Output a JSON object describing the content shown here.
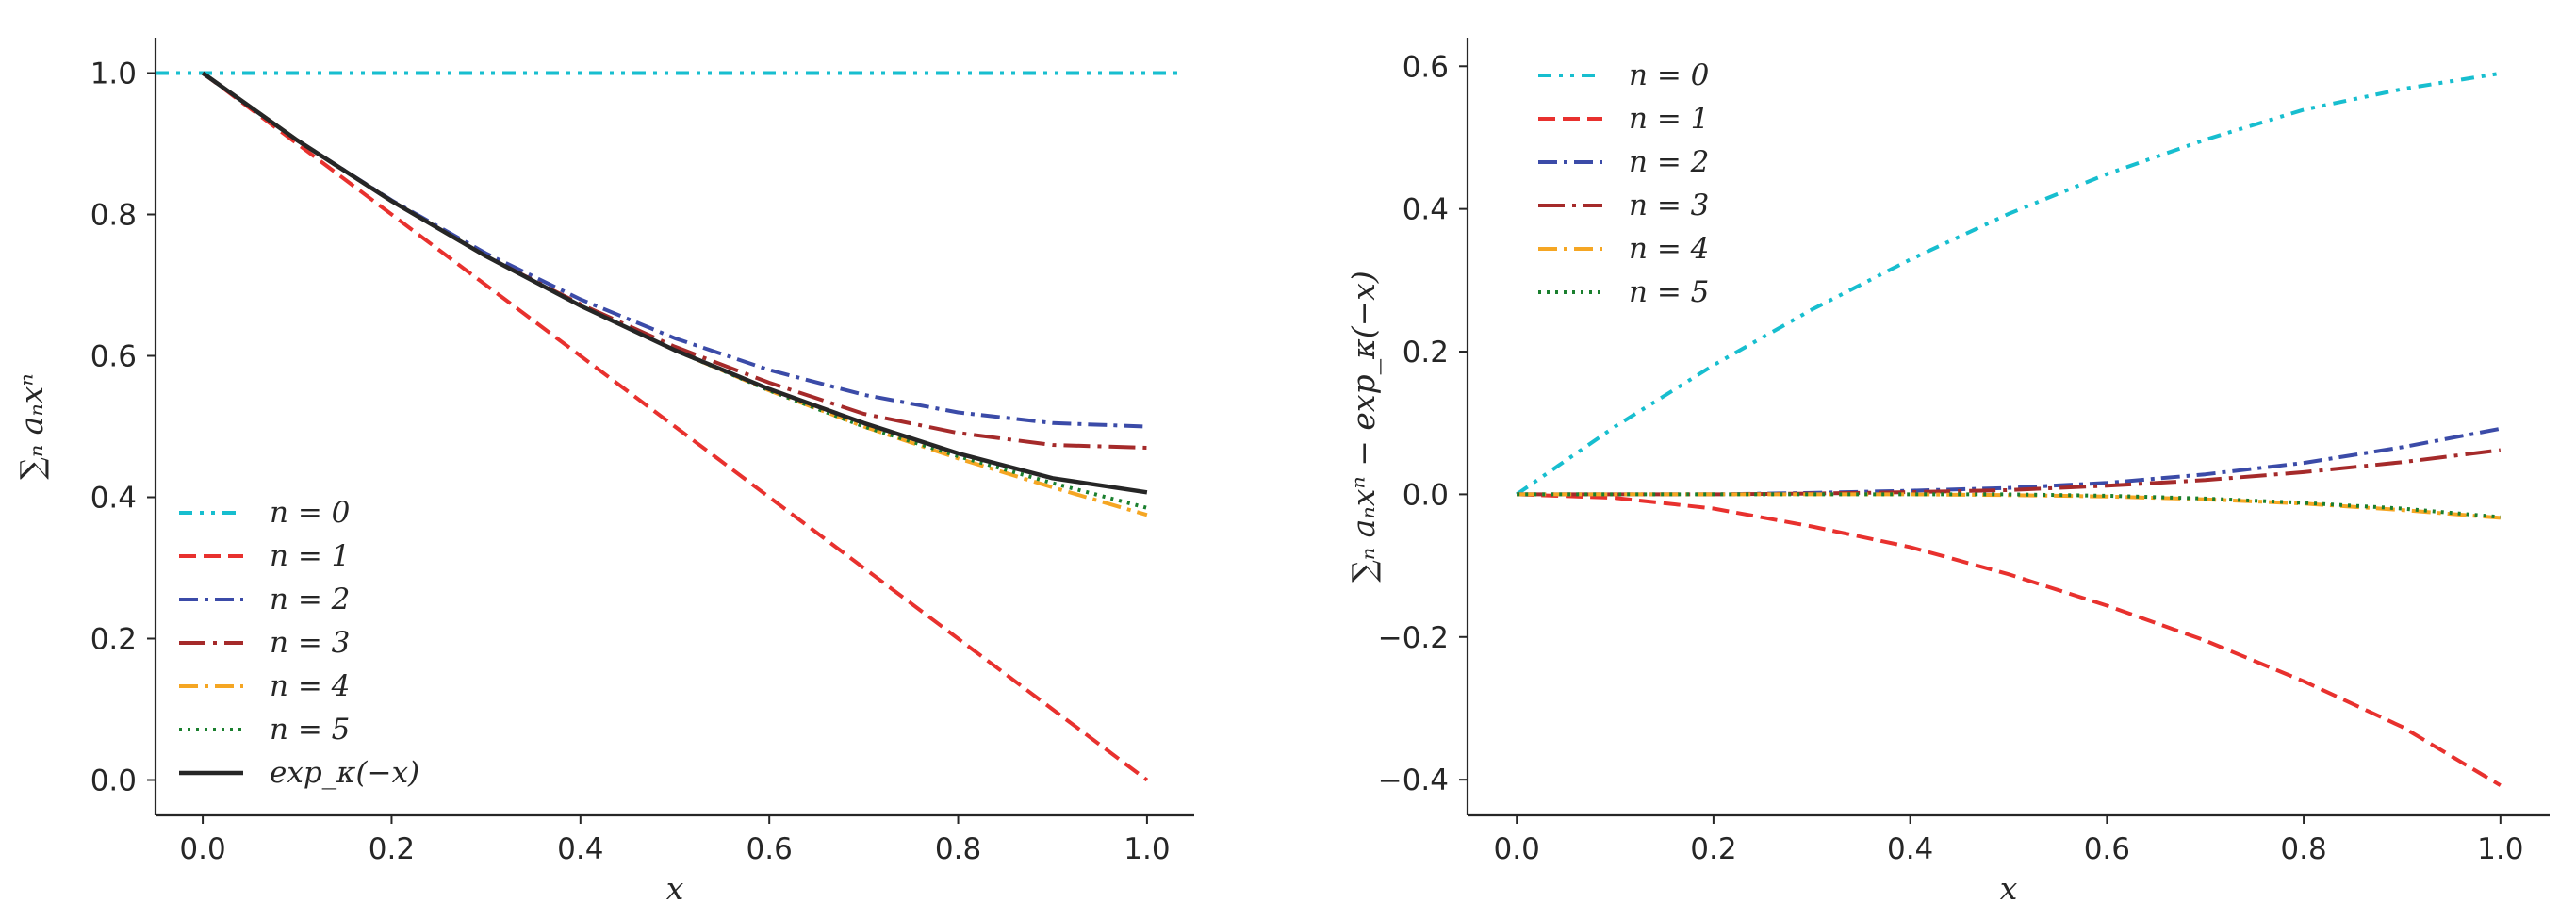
{
  "colors": {
    "n0": "#17becf",
    "n1": "#e8312e",
    "n2": "#3b4ba8",
    "n3": "#a52a2a",
    "n4": "#f5a623",
    "n5": "#1a7f2e",
    "exp": "#262626",
    "axis": "#262626"
  },
  "chart_data": [
    {
      "type": "line",
      "title": "",
      "xlabel": "x",
      "ylabel": "∑ₙ aₙxⁿ",
      "xlim": [
        -0.05,
        1.05
      ],
      "ylim": [
        -0.05,
        1.05
      ],
      "x_ticks": [
        0.0,
        0.2,
        0.4,
        0.6,
        0.8,
        1.0
      ],
      "x_tick_labels": [
        "0.0",
        "0.2",
        "0.4",
        "0.6",
        "0.8",
        "1.0"
      ],
      "y_ticks": [
        0.0,
        0.2,
        0.4,
        0.6,
        0.8,
        1.0
      ],
      "y_tick_labels": [
        "0.0",
        "0.2",
        "0.4",
        "0.6",
        "0.8",
        "1.0"
      ],
      "legend_position": "bottom-left",
      "x": [
        0.0,
        0.1,
        0.2,
        0.3,
        0.4,
        0.5,
        0.6,
        0.7,
        0.8,
        0.9,
        1.0
      ],
      "series": [
        {
          "name": "n = 0",
          "color_key": "n0",
          "dash": "dashdotdot",
          "values": [
            1.0,
            1.0,
            1.0,
            1.0,
            1.0,
            1.0,
            1.0,
            1.0,
            1.0,
            1.0,
            1.0
          ],
          "x_range": [
            -0.05,
            1.04
          ]
        },
        {
          "name": "n = 1",
          "color_key": "n1",
          "dash": "dashed",
          "values": [
            1.0,
            0.9,
            0.8,
            0.7,
            0.6,
            0.5,
            0.4,
            0.3,
            0.2,
            0.1,
            0.0
          ]
        },
        {
          "name": "n = 2",
          "color_key": "n2",
          "dash": "dashdot",
          "values": [
            1.0,
            0.905,
            0.82,
            0.745,
            0.68,
            0.625,
            0.58,
            0.545,
            0.52,
            0.505,
            0.5
          ]
        },
        {
          "name": "n = 3",
          "color_key": "n3",
          "dash": "longdash",
          "values": [
            1.0,
            0.905,
            0.819,
            0.741,
            0.673,
            0.613,
            0.562,
            0.518,
            0.491,
            0.474,
            0.47
          ]
        },
        {
          "name": "n = 4",
          "color_key": "n4",
          "dash": "dashdot",
          "values": [
            1.0,
            0.905,
            0.819,
            0.741,
            0.671,
            0.608,
            0.551,
            0.5,
            0.455,
            0.414,
            0.375
          ]
        },
        {
          "name": "n = 5",
          "color_key": "n5",
          "dash": "dotted",
          "values": [
            1.0,
            0.905,
            0.819,
            0.741,
            0.671,
            0.608,
            0.551,
            0.5,
            0.458,
            0.42,
            0.385
          ]
        },
        {
          "name": "exp_κ(−x)",
          "color_key": "exp",
          "dash": "solid",
          "values": [
            1.0,
            0.905,
            0.819,
            0.741,
            0.671,
            0.608,
            0.553,
            0.505,
            0.462,
            0.427,
            0.407
          ]
        }
      ]
    },
    {
      "type": "line",
      "title": "",
      "xlabel": "x",
      "ylabel": "∑ₙ aₙxⁿ − exp_κ(−x)",
      "xlim": [
        -0.05,
        1.05
      ],
      "ylim": [
        -0.45,
        0.64
      ],
      "x_ticks": [
        0.0,
        0.2,
        0.4,
        0.6,
        0.8,
        1.0
      ],
      "x_tick_labels": [
        "0.0",
        "0.2",
        "0.4",
        "0.6",
        "0.8",
        "1.0"
      ],
      "y_ticks": [
        -0.4,
        -0.2,
        0.0,
        0.2,
        0.4,
        0.6
      ],
      "y_tick_labels": [
        "−0.4",
        "−0.2",
        "0.0",
        "0.2",
        "0.4",
        "0.6"
      ],
      "legend_position": "top-left",
      "x": [
        0.0,
        0.1,
        0.2,
        0.3,
        0.4,
        0.5,
        0.6,
        0.7,
        0.8,
        0.9,
        1.0
      ],
      "series": [
        {
          "name": "n = 0",
          "color_key": "n0",
          "dash": "dashdotdot",
          "values": [
            0.0,
            0.095,
            0.181,
            0.259,
            0.329,
            0.393,
            0.449,
            0.497,
            0.539,
            0.568,
            0.59
          ]
        },
        {
          "name": "n = 1",
          "color_key": "n1",
          "dash": "dashed",
          "values": [
            0.0,
            -0.005,
            -0.02,
            -0.045,
            -0.074,
            -0.112,
            -0.156,
            -0.205,
            -0.262,
            -0.326,
            -0.408
          ]
        },
        {
          "name": "n = 2",
          "color_key": "n2",
          "dash": "dashdot",
          "values": [
            0.0,
            0.0,
            0.0,
            0.002,
            0.005,
            0.009,
            0.016,
            0.028,
            0.044,
            0.066,
            0.092
          ]
        },
        {
          "name": "n = 3",
          "color_key": "n3",
          "dash": "longdash",
          "values": [
            0.0,
            0.0,
            0.0,
            0.001,
            0.003,
            0.006,
            0.012,
            0.02,
            0.031,
            0.045,
            0.062
          ]
        },
        {
          "name": "n = 4",
          "color_key": "n4",
          "dash": "dashdot",
          "values": [
            0.0,
            0.0,
            0.0,
            0.0,
            0.0,
            -0.001,
            -0.003,
            -0.007,
            -0.013,
            -0.022,
            -0.033
          ]
        },
        {
          "name": "n = 5",
          "color_key": "n5",
          "dash": "dotted",
          "values": [
            0.0,
            0.0,
            0.0,
            0.0,
            0.0,
            0.0,
            -0.002,
            -0.006,
            -0.012,
            -0.02,
            -0.032
          ]
        }
      ]
    }
  ]
}
